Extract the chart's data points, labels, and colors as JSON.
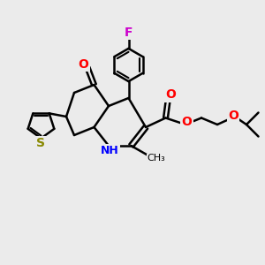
{
  "bg_color": "#ebebeb",
  "bond_color": "#000000",
  "bond_width": 1.8,
  "figsize": [
    3.0,
    3.0
  ],
  "dpi": 100,
  "F_color": "#cc00cc",
  "O_color": "#ff0000",
  "N_color": "#0000ff",
  "S_color": "#888800",
  "xlim": [
    0,
    10
  ],
  "ylim": [
    0,
    10
  ]
}
